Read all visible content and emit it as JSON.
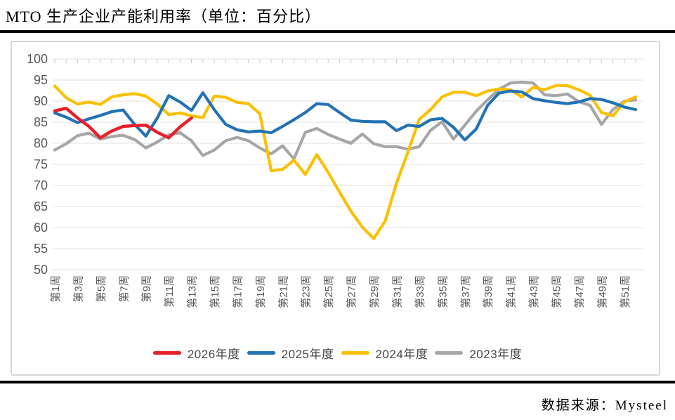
{
  "title": "MTO 生产企业产能利用率（单位：百分比）",
  "footer": {
    "source_label": "数据来源：Mysteel"
  },
  "colors": {
    "red": "#e8202a",
    "blue": "#2272b5",
    "yellow": "#fcc003",
    "gray": "#a6a6a6",
    "grid": "#e7e7e7",
    "tick": "#c9c9c9",
    "axis_text": "#595959"
  },
  "chart_data": {
    "type": "line",
    "title": "MTO 生产企业产能利用率（单位：百分比）",
    "xlabel": "",
    "ylabel": "",
    "ylim": [
      50,
      100
    ],
    "y_ticks": [
      100,
      95,
      90,
      85,
      80,
      75,
      70,
      65,
      60,
      55,
      50
    ],
    "grid": "horizontal",
    "legend_position": "bottom",
    "weeks_total": 52,
    "x_tick_labels": [
      "第1周",
      "第3周",
      "第5周",
      "第7周",
      "第9周",
      "第11周",
      "第13周",
      "第15周",
      "第17周",
      "第19周",
      "第21周",
      "第23周",
      "第25周",
      "第27周",
      "第29周",
      "第31周",
      "第33周",
      "第35周",
      "第37周",
      "第39周",
      "第41周",
      "第43周",
      "第45周",
      "第47周",
      "第49周",
      "第51周"
    ],
    "series": [
      {
        "name": "2026年度",
        "color": "#e8202a",
        "start_week": 1,
        "values": [
          87.7,
          88.3,
          86.0,
          84.0,
          81.3,
          82.9,
          84.0,
          84.2,
          84.3,
          82.6,
          81.3,
          83.9,
          86.0
        ]
      },
      {
        "name": "2025年度",
        "color": "#2272b5",
        "start_week": 1,
        "values": [
          87.2,
          86.2,
          84.9,
          85.8,
          86.6,
          87.5,
          87.9,
          84.5,
          81.7,
          86.0,
          91.3,
          89.8,
          87.8,
          92.0,
          88.0,
          84.5,
          83.2,
          82.7,
          82.9,
          82.5,
          84.0,
          85.6,
          87.3,
          89.4,
          89.2,
          87.3,
          85.5,
          85.2,
          85.1,
          85.1,
          83.0,
          84.3,
          84.0,
          85.6,
          85.9,
          83.8,
          80.8,
          83.4,
          89.0,
          91.9,
          92.4,
          92.2,
          90.6,
          90.1,
          89.7,
          89.4,
          89.8,
          90.6,
          90.4,
          89.6,
          88.6,
          88.0
        ]
      },
      {
        "name": "2024年度",
        "color": "#fcc003",
        "start_week": 1,
        "values": [
          93.6,
          90.8,
          89.3,
          89.8,
          89.2,
          91.0,
          91.5,
          91.8,
          91.2,
          89.3,
          86.8,
          87.2,
          86.5,
          86.1,
          91.2,
          90.9,
          89.7,
          89.4,
          87.0,
          73.5,
          73.8,
          76.0,
          72.6,
          77.3,
          73.1,
          68.4,
          63.9,
          60.1,
          57.4,
          61.5,
          70.5,
          77.9,
          85.7,
          88.0,
          91.0,
          92.1,
          92.1,
          91.3,
          92.4,
          92.9,
          92.7,
          91.0,
          93.3,
          92.7,
          93.7,
          93.7,
          92.7,
          91.4,
          87.3,
          86.5,
          89.8,
          91.0
        ]
      },
      {
        "name": "2023年度",
        "color": "#a6a6a6",
        "start_week": 1,
        "values": [
          78.4,
          79.9,
          81.8,
          82.4,
          81.0,
          81.6,
          81.9,
          80.9,
          78.9,
          80.3,
          82.0,
          82.5,
          80.6,
          77.1,
          78.4,
          80.6,
          81.4,
          80.6,
          78.9,
          77.5,
          79.4,
          76.3,
          82.6,
          83.5,
          82.1,
          81.0,
          80.0,
          82.2,
          79.9,
          79.2,
          79.2,
          78.6,
          79.2,
          83.1,
          85.1,
          81.0,
          84.3,
          87.6,
          90.3,
          92.8,
          94.3,
          94.5,
          94.3,
          91.5,
          91.3,
          91.7,
          89.9,
          89.0,
          84.5,
          88.0,
          90.0,
          90.3
        ]
      }
    ]
  }
}
